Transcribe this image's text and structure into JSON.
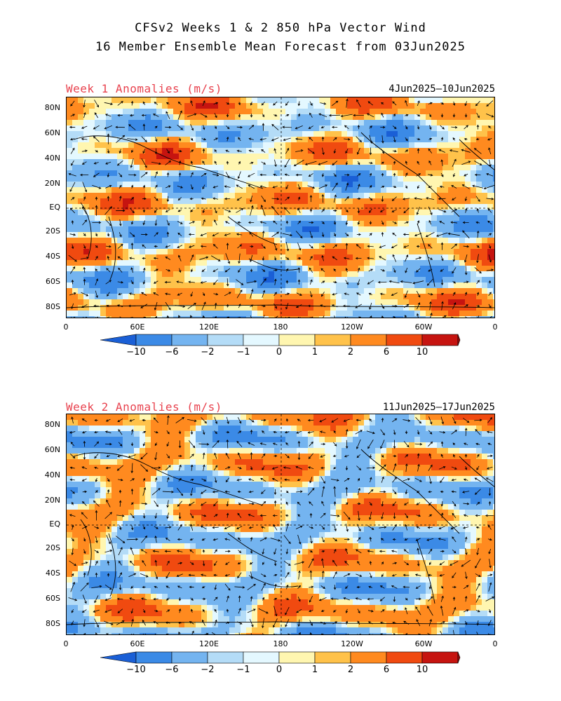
{
  "header": {
    "line1": "CFSv2 Weeks 1 & 2 850 hPa Vector Wind",
    "line2": "16 Member Ensemble Mean Forecast from 03Jun2025"
  },
  "panels": [
    {
      "title": "Week 1 Anomalies (m/s)",
      "date_range": "4Jun2025–10Jun2025"
    },
    {
      "title": "Week 2 Anomalies (m/s)",
      "date_range": "11Jun2025–17Jun2025"
    }
  ],
  "lat_labels": [
    "80N",
    "60N",
    "40N",
    "20N",
    "EQ",
    "20S",
    "40S",
    "60S",
    "80S"
  ],
  "lon_labels": [
    "0",
    "60E",
    "120E",
    "180",
    "120W",
    "60W",
    "0"
  ],
  "colorbar": {
    "labels": [
      "-10",
      "-6",
      "-2",
      "-1",
      "0",
      "1",
      "2",
      "6",
      "10"
    ],
    "colors": [
      "#1a5fd6",
      "#3b8ae6",
      "#74b4f0",
      "#b4dcf7",
      "#e4f8ff",
      "#fff6b0",
      "#ffc24a",
      "#ff8a1f",
      "#f04a10",
      "#c61410",
      "#a00c0c"
    ]
  }
}
